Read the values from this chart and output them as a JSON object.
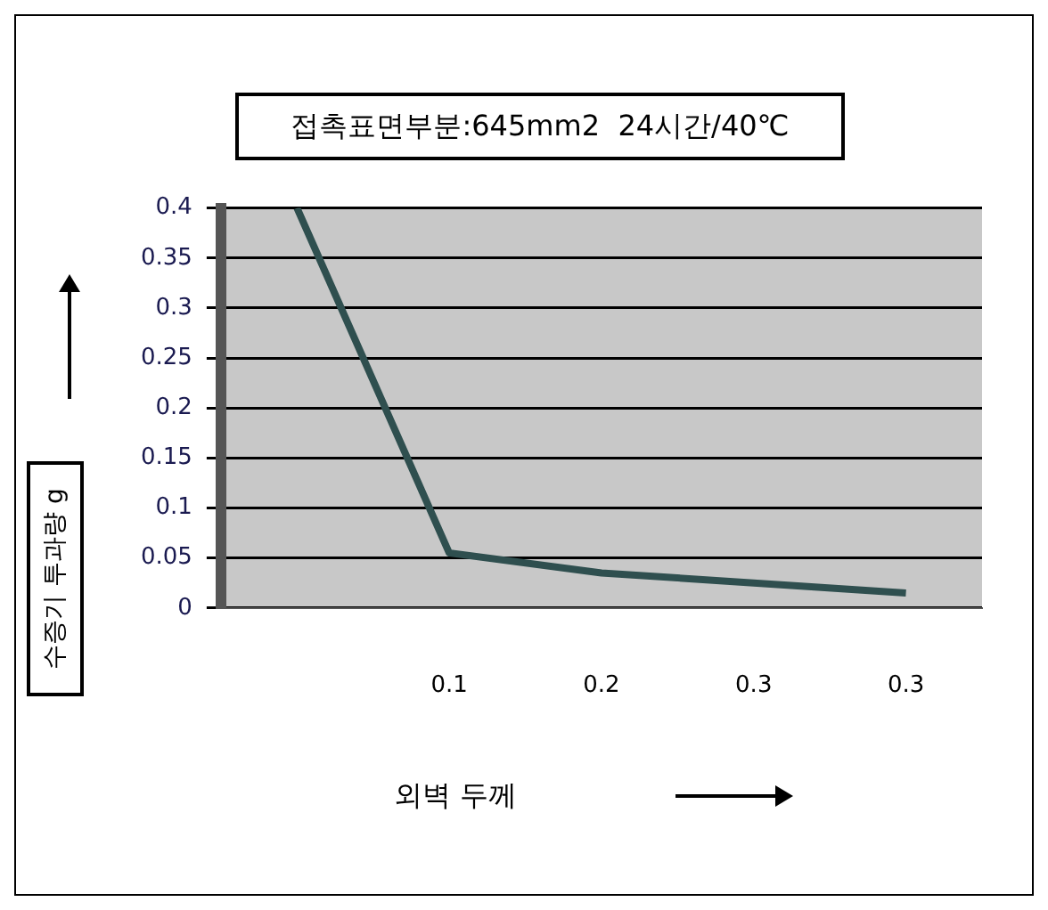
{
  "chart_data": {
    "type": "line",
    "title": "접촉표면부분:645mm2  24시간/40℃",
    "xlabel": "외벽 두께",
    "ylabel": "수증기 투과량 g",
    "categories": [
      null,
      "0.1",
      "0.2",
      "0.3",
      "0.3"
    ],
    "series": [
      {
        "color": "#2f4f4f",
        "values": [
          0.4,
          0.055,
          0.035,
          0.025,
          0.015
        ]
      }
    ],
    "ylim": [
      0,
      0.4
    ],
    "yticks": [
      0,
      0.05,
      0.1,
      0.15,
      0.2,
      0.25,
      0.3,
      0.35,
      0.4
    ],
    "grid": "y",
    "legend": false,
    "marker": "none"
  }
}
